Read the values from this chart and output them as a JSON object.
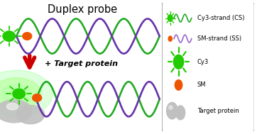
{
  "title": "Duplex probe",
  "title_fontsize": 10.5,
  "bg_color": "#ffffff",
  "green_wave_color": "#22aa22",
  "purple_wave_color": "#6633aa",
  "glow_color": "#88ff44",
  "cy3_color": "#22cc00",
  "sm_color": "#ee5500",
  "protein_color": "#c0c0c0",
  "arrow_color": "#cc0000",
  "plus_text": "+ Target protein",
  "legend_items": [
    {
      "label": "Cy3-strand (CS)",
      "color": "#22aa22",
      "type": "wave_green"
    },
    {
      "label": "SM-strand (SS)",
      "color": "#9966cc",
      "type": "wave_purple"
    },
    {
      "label": "Cy3",
      "color": "#22cc00",
      "type": "sun"
    },
    {
      "label": "SM",
      "color": "#ee5500",
      "type": "dot"
    },
    {
      "label": "Target protein",
      "color": "#c0c0c0",
      "type": "protein"
    }
  ]
}
